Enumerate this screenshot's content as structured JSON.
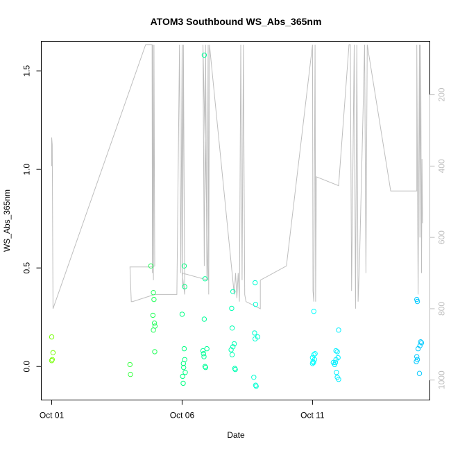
{
  "chart_data": {
    "type": "scatter",
    "title": "ATOM3 Southbound WS_Abs_365nm",
    "xlabel": "Date",
    "ylabel": "WS_Abs_365nm",
    "x_unit": "days after 2020-10-01",
    "xlim": [
      -0.4,
      14.5
    ],
    "ylim": [
      -0.17,
      1.65
    ],
    "x_ticks": [
      {
        "value": 0,
        "label": "Oct 01"
      },
      {
        "value": 5,
        "label": "Oct 06"
      },
      {
        "value": 10,
        "label": "Oct 11"
      }
    ],
    "y_ticks": [
      {
        "value": 0.0,
        "label": "0.0"
      },
      {
        "value": 0.5,
        "label": "0.5"
      },
      {
        "value": 1.0,
        "label": "1.0"
      },
      {
        "value": 1.5,
        "label": "1.5"
      }
    ],
    "y2_ticks": [
      {
        "value": 200,
        "label": "200"
      },
      {
        "value": 400,
        "label": "400"
      },
      {
        "value": 600,
        "label": "600"
      },
      {
        "value": 800,
        "label": "800"
      },
      {
        "value": 1000,
        "label": "1000"
      }
    ],
    "y2lim": [
      1056,
      50
    ],
    "grid": false,
    "colors": {
      "track": "#bebebe",
      "palette": [
        "#7fff00",
        "#00ff7f",
        "#00ffff",
        "#00bfff"
      ]
    },
    "points": [
      {
        "x": 0.0,
        "y": 0.15,
        "c": 0.02
      },
      {
        "x": 0.05,
        "y": 0.07,
        "c": 0.02
      },
      {
        "x": 0.0,
        "y": 0.03,
        "c": 0.02
      },
      {
        "x": 0.02,
        "y": 0.035,
        "c": 0.02
      },
      {
        "x": 3.0,
        "y": 0.01,
        "c": 0.18
      },
      {
        "x": 3.02,
        "y": -0.04,
        "c": 0.18
      },
      {
        "x": 3.8,
        "y": 0.51,
        "c": 0.24
      },
      {
        "x": 3.9,
        "y": 0.375,
        "c": 0.24
      },
      {
        "x": 3.92,
        "y": 0.34,
        "c": 0.24
      },
      {
        "x": 3.88,
        "y": 0.26,
        "c": 0.24
      },
      {
        "x": 3.94,
        "y": 0.22,
        "c": 0.24
      },
      {
        "x": 3.96,
        "y": 0.205,
        "c": 0.24
      },
      {
        "x": 3.9,
        "y": 0.185,
        "c": 0.24
      },
      {
        "x": 3.95,
        "y": 0.075,
        "c": 0.24
      },
      {
        "x": 5.08,
        "y": 0.51,
        "c": 0.34
      },
      {
        "x": 5.1,
        "y": 0.405,
        "c": 0.34
      },
      {
        "x": 5.0,
        "y": 0.265,
        "c": 0.34
      },
      {
        "x": 5.08,
        "y": 0.09,
        "c": 0.34
      },
      {
        "x": 5.1,
        "y": 0.035,
        "c": 0.34
      },
      {
        "x": 5.05,
        "y": 0.015,
        "c": 0.34
      },
      {
        "x": 5.06,
        "y": -0.005,
        "c": 0.34
      },
      {
        "x": 5.12,
        "y": -0.03,
        "c": 0.34
      },
      {
        "x": 5.02,
        "y": -0.05,
        "c": 0.34
      },
      {
        "x": 5.04,
        "y": -0.085,
        "c": 0.34
      },
      {
        "x": 5.85,
        "y": 1.58,
        "c": 0.4
      },
      {
        "x": 5.88,
        "y": 0.445,
        "c": 0.4
      },
      {
        "x": 5.85,
        "y": 0.24,
        "c": 0.4
      },
      {
        "x": 5.95,
        "y": 0.09,
        "c": 0.4
      },
      {
        "x": 5.8,
        "y": 0.08,
        "c": 0.4
      },
      {
        "x": 5.82,
        "y": 0.065,
        "c": 0.4
      },
      {
        "x": 5.84,
        "y": 0.05,
        "c": 0.4
      },
      {
        "x": 5.88,
        "y": 0.0,
        "c": 0.4
      },
      {
        "x": 5.9,
        "y": -0.005,
        "c": 0.4
      },
      {
        "x": 6.95,
        "y": 0.38,
        "c": 0.47
      },
      {
        "x": 6.9,
        "y": 0.295,
        "c": 0.47
      },
      {
        "x": 6.92,
        "y": 0.195,
        "c": 0.47
      },
      {
        "x": 7.0,
        "y": 0.115,
        "c": 0.47
      },
      {
        "x": 6.95,
        "y": 0.1,
        "c": 0.47
      },
      {
        "x": 6.88,
        "y": 0.085,
        "c": 0.47
      },
      {
        "x": 6.92,
        "y": 0.06,
        "c": 0.47
      },
      {
        "x": 7.02,
        "y": -0.01,
        "c": 0.47
      },
      {
        "x": 7.04,
        "y": -0.015,
        "c": 0.47
      },
      {
        "x": 7.8,
        "y": 0.425,
        "c": 0.55
      },
      {
        "x": 7.82,
        "y": 0.315,
        "c": 0.55
      },
      {
        "x": 7.78,
        "y": 0.17,
        "c": 0.55
      },
      {
        "x": 7.9,
        "y": 0.15,
        "c": 0.55
      },
      {
        "x": 7.8,
        "y": 0.14,
        "c": 0.55
      },
      {
        "x": 7.75,
        "y": -0.055,
        "c": 0.55
      },
      {
        "x": 7.82,
        "y": -0.095,
        "c": 0.55
      },
      {
        "x": 7.84,
        "y": -0.1,
        "c": 0.55
      },
      {
        "x": 10.05,
        "y": 0.28,
        "c": 0.67
      },
      {
        "x": 10.1,
        "y": 0.065,
        "c": 0.67
      },
      {
        "x": 10.05,
        "y": 0.06,
        "c": 0.67
      },
      {
        "x": 10.0,
        "y": 0.045,
        "c": 0.67
      },
      {
        "x": 10.08,
        "y": 0.035,
        "c": 0.67
      },
      {
        "x": 10.02,
        "y": 0.025,
        "c": 0.67
      },
      {
        "x": 10.04,
        "y": 0.02,
        "c": 0.67
      },
      {
        "x": 10.0,
        "y": 0.015,
        "c": 0.67
      },
      {
        "x": 11.0,
        "y": 0.185,
        "c": 0.75
      },
      {
        "x": 10.9,
        "y": 0.08,
        "c": 0.75
      },
      {
        "x": 10.95,
        "y": 0.075,
        "c": 0.75
      },
      {
        "x": 10.98,
        "y": 0.045,
        "c": 0.75
      },
      {
        "x": 10.9,
        "y": 0.035,
        "c": 0.75
      },
      {
        "x": 10.8,
        "y": 0.02,
        "c": 0.75
      },
      {
        "x": 10.85,
        "y": 0.01,
        "c": 0.75
      },
      {
        "x": 10.88,
        "y": 0.02,
        "c": 0.75
      },
      {
        "x": 10.92,
        "y": -0.03,
        "c": 0.75
      },
      {
        "x": 10.95,
        "y": -0.055,
        "c": 0.75
      },
      {
        "x": 11.0,
        "y": -0.065,
        "c": 0.75
      },
      {
        "x": 14.0,
        "y": 0.34,
        "c": 0.95
      },
      {
        "x": 14.02,
        "y": 0.33,
        "c": 0.95
      },
      {
        "x": 14.15,
        "y": 0.125,
        "c": 0.95
      },
      {
        "x": 14.18,
        "y": 0.12,
        "c": 0.95
      },
      {
        "x": 14.12,
        "y": 0.105,
        "c": 0.95
      },
      {
        "x": 14.05,
        "y": 0.09,
        "c": 0.95
      },
      {
        "x": 14.0,
        "y": 0.05,
        "c": 0.95
      },
      {
        "x": 14.02,
        "y": 0.035,
        "c": 0.95
      },
      {
        "x": 13.98,
        "y": 0.025,
        "c": 0.95
      },
      {
        "x": 14.1,
        "y": -0.035,
        "c": 0.95
      }
    ],
    "track_y2": [
      [
        0.0,
        400
      ],
      [
        0.0,
        320
      ],
      [
        0.02,
        340
      ],
      [
        0.05,
        800
      ],
      [
        3.6,
        60
      ],
      [
        3.65,
        60
      ],
      [
        3.7,
        60
      ],
      [
        3.85,
        60
      ],
      [
        3.86,
        700
      ],
      [
        3.87,
        60
      ],
      [
        3.9,
        720
      ],
      [
        3.92,
        60
      ],
      [
        3.95,
        680
      ],
      [
        3.8,
        683
      ],
      [
        3.0,
        683
      ],
      [
        3.05,
        780
      ],
      [
        3.1,
        780
      ],
      [
        3.95,
        760
      ],
      [
        4.8,
        760
      ],
      [
        4.9,
        60
      ],
      [
        4.95,
        700
      ],
      [
        5.0,
        60
      ],
      [
        5.02,
        740
      ],
      [
        5.05,
        60
      ],
      [
        5.1,
        760
      ],
      [
        5.0,
        700
      ],
      [
        6.0,
        720
      ],
      [
        5.8,
        60
      ],
      [
        5.85,
        680
      ],
      [
        5.9,
        60
      ],
      [
        5.95,
        720
      ],
      [
        6.0,
        60
      ],
      [
        6.02,
        760
      ],
      [
        6.05,
        60
      ],
      [
        7.0,
        760
      ],
      [
        7.05,
        700
      ],
      [
        7.1,
        770
      ],
      [
        7.15,
        700
      ],
      [
        7.2,
        780
      ],
      [
        7.25,
        60
      ],
      [
        7.3,
        720
      ],
      [
        7.35,
        60
      ],
      [
        7.4,
        760
      ],
      [
        7.45,
        780
      ],
      [
        8.0,
        800
      ],
      [
        8.0,
        720
      ],
      [
        9.0,
        680
      ],
      [
        10.0,
        60
      ],
      [
        10.02,
        750
      ],
      [
        10.05,
        780
      ],
      [
        10.1,
        60
      ],
      [
        10.12,
        780
      ],
      [
        10.15,
        430
      ],
      [
        11.0,
        455
      ],
      [
        11.4,
        60
      ],
      [
        11.45,
        60
      ],
      [
        11.5,
        750
      ],
      [
        11.6,
        60
      ],
      [
        11.65,
        800
      ],
      [
        11.7,
        60
      ],
      [
        11.75,
        780
      ],
      [
        11.8,
        680
      ],
      [
        12.0,
        60
      ],
      [
        12.05,
        700
      ],
      [
        12.1,
        60
      ],
      [
        13.0,
        470
      ],
      [
        14.0,
        470
      ],
      [
        14.0,
        60
      ],
      [
        14.05,
        760
      ],
      [
        14.1,
        60
      ],
      [
        14.12,
        600
      ],
      [
        14.15,
        60
      ],
      [
        14.18,
        700
      ],
      [
        14.2,
        380
      ],
      [
        14.22,
        560
      ]
    ]
  }
}
